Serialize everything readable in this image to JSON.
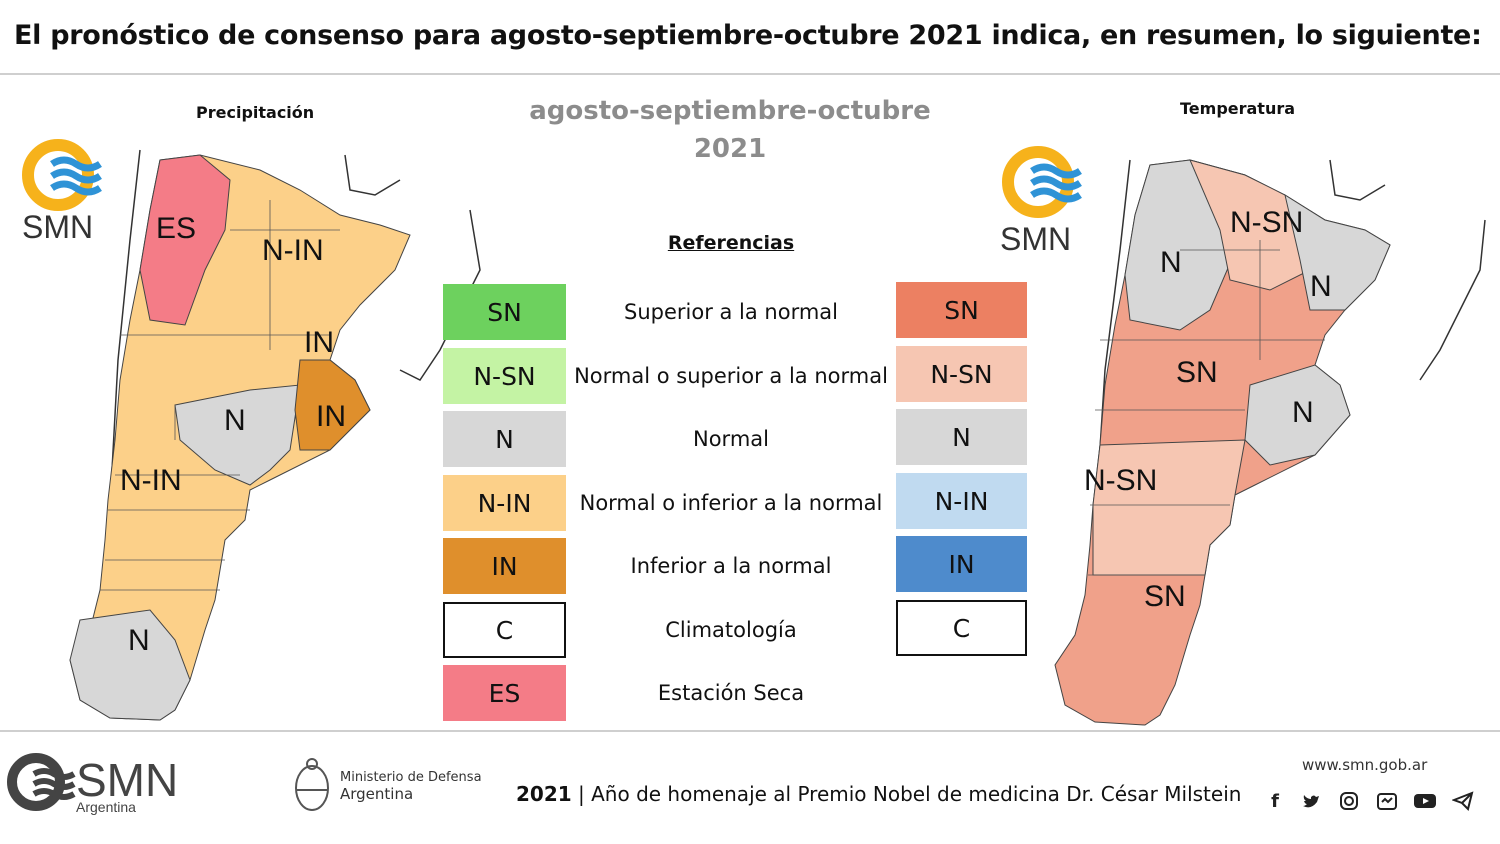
{
  "title": "El pronóstico de consenso para  agosto-septiembre-octubre 2021 indica, en resumen, lo siguiente:",
  "season": {
    "line1": "agosto-septiembre-octubre",
    "line2": "2021"
  },
  "precip_map": {
    "heading": "Precipitación",
    "logo_text": "SMN",
    "labels": [
      "ES",
      "N-IN",
      "IN",
      "N",
      "IN",
      "N-IN",
      "N"
    ]
  },
  "temp_map": {
    "heading": "Temperatura",
    "logo_text": "SMN",
    "labels": [
      "N-SN",
      "N",
      "N",
      "SN",
      "N",
      "N-SN",
      "SN"
    ]
  },
  "references": {
    "title": "Referencias",
    "rows": [
      {
        "desc": "Superior a la normal",
        "precip_code": "SN",
        "precip_color": "#6dd15e",
        "temp_code": "SN",
        "temp_color": "#ec8062"
      },
      {
        "desc": "Normal o superior a la normal",
        "precip_code": "N-SN",
        "precip_color": "#c4f3a4",
        "temp_code": "N-SN",
        "temp_color": "#f6c6b2"
      },
      {
        "desc": "Normal",
        "precip_code": "N",
        "precip_color": "#d7d7d7",
        "temp_code": "N",
        "temp_color": "#d7d7d7"
      },
      {
        "desc": "Normal o inferior a la normal",
        "precip_code": "N-IN",
        "precip_color": "#fcd089",
        "temp_code": "N-IN",
        "temp_color": "#c0daf0"
      },
      {
        "desc": "Inferior a la normal",
        "precip_code": "IN",
        "precip_color": "#df8f2c",
        "temp_code": "IN",
        "temp_color": "#4e8bcc"
      },
      {
        "desc": "Climatología",
        "precip_code": "C",
        "precip_color": "#ffffff",
        "temp_code": "C",
        "temp_color": "#ffffff"
      },
      {
        "desc": "Estación Seca",
        "precip_code": "ES",
        "precip_color": "#f47c87",
        "temp_code": "",
        "temp_color": ""
      }
    ]
  },
  "footer": {
    "logo_text": "SMN",
    "logo_sub": "Argentina",
    "ministry_line1": "Ministerio de Defensa",
    "ministry_line2": "Argentina",
    "year": "2021",
    "text": "| Año de homenaje al Premio Nobel de medicina Dr. César Milstein",
    "website": "www.smn.gob.ar",
    "social_icons": [
      "facebook-icon",
      "twitter-icon",
      "instagram-icon",
      "flickr-icon",
      "youtube-icon",
      "telegram-icon"
    ]
  }
}
